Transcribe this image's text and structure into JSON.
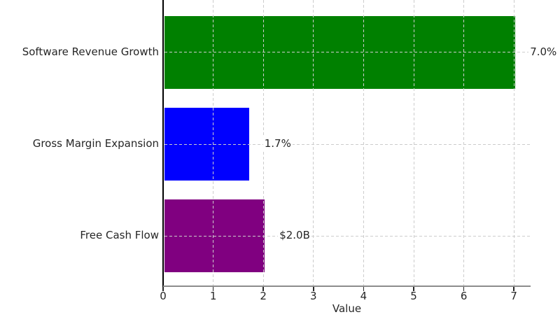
{
  "chart_data": {
    "type": "bar",
    "orientation": "horizontal",
    "title": null,
    "xlabel": "Value",
    "ylabel": "",
    "categories": [
      "Software Revenue Growth",
      "Gross Margin Expansion",
      "Free Cash Flow"
    ],
    "series": [
      {
        "name": "Value",
        "values": [
          7.0,
          1.7,
          2.0
        ],
        "value_labels": [
          "7.0%",
          "1.7%",
          "$2.0B"
        ],
        "bar_colors": [
          "#008000",
          "#0000ff",
          "#800080"
        ]
      }
    ],
    "x_ticks": [
      "0",
      "1",
      "2",
      "3",
      "4",
      "5",
      "6",
      "7"
    ],
    "xlim": [
      0,
      7.33
    ],
    "grid": {
      "visible": true,
      "style": "dashed",
      "color": "#cccccc",
      "drawn_above_bars": true
    },
    "axis_style": {
      "left_spine_color": "#000000",
      "bottom_spine_color": "#8c8c8c",
      "tick_color": "#262626",
      "text_color": "#262626",
      "background": "#ffffff"
    },
    "legend": null
  }
}
